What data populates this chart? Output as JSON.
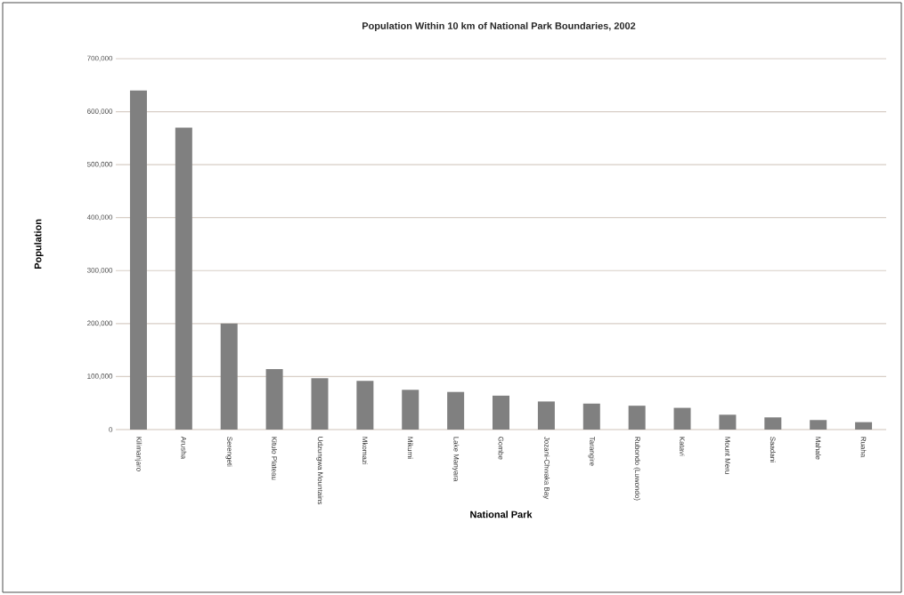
{
  "chart_data": {
    "type": "bar",
    "title": "Population Within 10 km of National Park Boundaries, 2002",
    "xlabel": "National Park",
    "ylabel": "Population",
    "categories": [
      "Kilimanjaro",
      "Arusha",
      "Serengeti",
      "Kitulo Plateau",
      "Udzungwa Mountains",
      "Mkomazi",
      "Mikumi",
      "Lake Manyara",
      "Gombe",
      "Jozani-Chwaka Bay",
      "Tarangire",
      "Rubondo (Luwondo)",
      "Katavi",
      "Mount Meru",
      "Saadani",
      "Mahale",
      "Ruaha"
    ],
    "values": [
      640000,
      570000,
      200000,
      114000,
      97000,
      92000,
      75000,
      71000,
      64000,
      53000,
      49000,
      45000,
      41000,
      28000,
      23000,
      18000,
      14000
    ],
    "color": "#808080",
    "ylim": [
      0,
      700000
    ],
    "yticks": [
      {
        "value": 0,
        "label": "0"
      },
      {
        "value": 100000,
        "label": "100,000"
      },
      {
        "value": 200000,
        "label": "200,000"
      },
      {
        "value": 300000,
        "label": "300,000"
      },
      {
        "value": 400000,
        "label": "400,000"
      },
      {
        "value": 500000,
        "label": "500,000"
      },
      {
        "value": 600000,
        "label": "600,000"
      },
      {
        "value": 700000,
        "label": "700,000"
      }
    ],
    "grid": "y"
  }
}
